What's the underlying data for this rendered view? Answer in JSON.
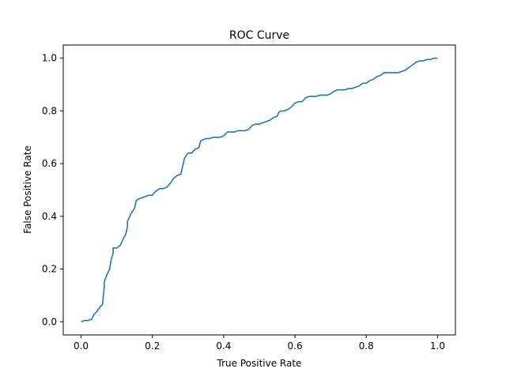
{
  "chart_data": {
    "type": "line",
    "title": "ROC Curve",
    "xlabel": "True Positive Rate",
    "ylabel": "False Positive Rate",
    "xlim": [
      -0.05,
      1.05
    ],
    "ylim": [
      -0.05,
      1.05
    ],
    "xticks": [
      0.0,
      0.2,
      0.4,
      0.6,
      0.8,
      1.0
    ],
    "xtick_labels": [
      "0.0",
      "0.2",
      "0.4",
      "0.6",
      "0.8",
      "1.0"
    ],
    "yticks": [
      0.0,
      0.2,
      0.4,
      0.6,
      0.8,
      1.0
    ],
    "ytick_labels": [
      "0.0",
      "0.2",
      "0.4",
      "0.6",
      "0.8",
      "1.0"
    ],
    "grid": false,
    "line_color": "#1f77b4",
    "series": [
      {
        "x": [
          0.0,
          0.01,
          0.02,
          0.03,
          0.035,
          0.045,
          0.055,
          0.06,
          0.065,
          0.065,
          0.07,
          0.08,
          0.085,
          0.09,
          0.09,
          0.1,
          0.11,
          0.12,
          0.125,
          0.13,
          0.13,
          0.14,
          0.15,
          0.155,
          0.16,
          0.17,
          0.18,
          0.19,
          0.2,
          0.205,
          0.21,
          0.22,
          0.23,
          0.24,
          0.25,
          0.26,
          0.27,
          0.28,
          0.285,
          0.29,
          0.3,
          0.31,
          0.32,
          0.33,
          0.335,
          0.34,
          0.35,
          0.36,
          0.37,
          0.38,
          0.39,
          0.4,
          0.41,
          0.42,
          0.43,
          0.44,
          0.45,
          0.46,
          0.47,
          0.48,
          0.49,
          0.5,
          0.51,
          0.52,
          0.53,
          0.54,
          0.55,
          0.555,
          0.56,
          0.57,
          0.58,
          0.59,
          0.6,
          0.61,
          0.62,
          0.63,
          0.64,
          0.65,
          0.66,
          0.67,
          0.68,
          0.69,
          0.7,
          0.71,
          0.72,
          0.73,
          0.74,
          0.75,
          0.76,
          0.77,
          0.78,
          0.79,
          0.8,
          0.81,
          0.82,
          0.83,
          0.84,
          0.85,
          0.86,
          0.87,
          0.88,
          0.89,
          0.9,
          0.91,
          0.92,
          0.93,
          0.935,
          0.94,
          0.95,
          0.96,
          0.97,
          0.98,
          0.99,
          1.0
        ],
        "y": [
          0.0,
          0.005,
          0.005,
          0.01,
          0.025,
          0.04,
          0.06,
          0.065,
          0.13,
          0.15,
          0.17,
          0.2,
          0.24,
          0.26,
          0.28,
          0.28,
          0.29,
          0.32,
          0.33,
          0.36,
          0.38,
          0.41,
          0.43,
          0.46,
          0.465,
          0.47,
          0.475,
          0.48,
          0.48,
          0.49,
          0.495,
          0.505,
          0.505,
          0.51,
          0.525,
          0.545,
          0.555,
          0.56,
          0.59,
          0.62,
          0.64,
          0.64,
          0.655,
          0.66,
          0.685,
          0.69,
          0.695,
          0.695,
          0.7,
          0.7,
          0.7,
          0.705,
          0.72,
          0.72,
          0.72,
          0.725,
          0.725,
          0.725,
          0.73,
          0.745,
          0.75,
          0.75,
          0.755,
          0.76,
          0.765,
          0.775,
          0.78,
          0.795,
          0.8,
          0.8,
          0.805,
          0.815,
          0.83,
          0.835,
          0.835,
          0.85,
          0.855,
          0.855,
          0.855,
          0.86,
          0.86,
          0.86,
          0.865,
          0.875,
          0.88,
          0.88,
          0.88,
          0.885,
          0.885,
          0.89,
          0.895,
          0.905,
          0.905,
          0.915,
          0.92,
          0.93,
          0.935,
          0.945,
          0.945,
          0.945,
          0.945,
          0.945,
          0.95,
          0.955,
          0.965,
          0.975,
          0.98,
          0.985,
          0.99,
          0.99,
          0.995,
          0.995,
          1.0,
          1.0
        ]
      }
    ]
  }
}
